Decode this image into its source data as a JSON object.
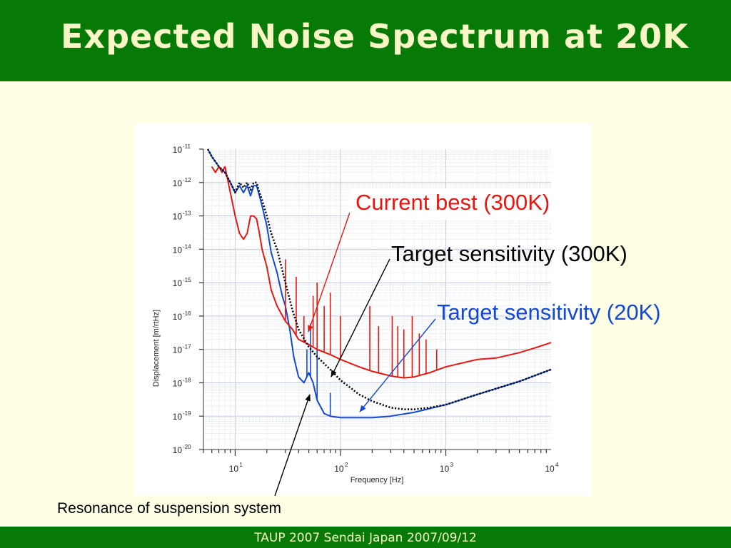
{
  "slide": {
    "title": "Expected Noise Spectrum at 20K",
    "footer": "TAUP 2007 Sendai Japan 2007/09/12",
    "annotations": {
      "current_best": "Current best (300K)",
      "target_300k": "Target sensitivity (300K)",
      "target_20k": "Target sensitivity (20K)",
      "resonance": "Resonance of suspension system"
    }
  },
  "colors": {
    "header": "#067906",
    "title_text": "#f8f6c6",
    "background": "#fefee4",
    "current_best": "#e8160e",
    "target_300k": "#000000",
    "target_20k": "#1248d8"
  },
  "chart_data": {
    "type": "line",
    "xlabel": "Frequency [Hz]",
    "ylabel": "Displacement [m/rtHz]",
    "xscale": "log",
    "yscale": "log",
    "xlim": [
      5,
      10000
    ],
    "ylim": [
      1e-20,
      1e-11
    ],
    "grid": true,
    "x_ticks": [
      {
        "base": "10",
        "exp": "1",
        "value": 10
      },
      {
        "base": "10",
        "exp": "2",
        "value": 100
      },
      {
        "base": "10",
        "exp": "3",
        "value": 1000
      },
      {
        "base": "10",
        "exp": "4",
        "value": 10000
      }
    ],
    "y_ticks": [
      {
        "base": "10",
        "exp": "-11",
        "value": 1e-11
      },
      {
        "base": "10",
        "exp": "-12",
        "value": 1e-12
      },
      {
        "base": "10",
        "exp": "-13",
        "value": 1e-13
      },
      {
        "base": "10",
        "exp": "-14",
        "value": 1e-14
      },
      {
        "base": "10",
        "exp": "-15",
        "value": 1e-15
      },
      {
        "base": "10",
        "exp": "-16",
        "value": 1e-16
      },
      {
        "base": "10",
        "exp": "-17",
        "value": 1e-17
      },
      {
        "base": "10",
        "exp": "-18",
        "value": 1e-18
      },
      {
        "base": "10",
        "exp": "-19",
        "value": 1e-19
      },
      {
        "base": "10",
        "exp": "-20",
        "value": 1e-20
      }
    ],
    "series": [
      {
        "name": "Current best (300K)",
        "color": "#e8160e",
        "style": "solid",
        "points": [
          [
            6,
            3e-12
          ],
          [
            6.5,
            2e-12
          ],
          [
            7,
            3e-12
          ],
          [
            7.5,
            2e-12
          ],
          [
            8,
            3e-12
          ],
          [
            9,
            5e-13
          ],
          [
            10,
            1e-13
          ],
          [
            11,
            3e-14
          ],
          [
            12,
            2e-14
          ],
          [
            13,
            3e-14
          ],
          [
            14,
            1e-13
          ],
          [
            15,
            1e-13
          ],
          [
            16,
            8e-14
          ],
          [
            17,
            3e-14
          ],
          [
            18,
            1e-14
          ],
          [
            20,
            3e-15
          ],
          [
            22,
            6e-16
          ],
          [
            25,
            2e-16
          ],
          [
            30,
            7e-17
          ],
          [
            35,
            4e-17
          ],
          [
            40,
            2e-17
          ],
          [
            50,
            1.4e-17
          ],
          [
            60,
            1e-17
          ],
          [
            80,
            7e-18
          ],
          [
            100,
            5e-18
          ],
          [
            150,
            3e-18
          ],
          [
            200,
            2.2e-18
          ],
          [
            300,
            1.6e-18
          ],
          [
            400,
            1.4e-18
          ],
          [
            500,
            1.5e-18
          ],
          [
            700,
            2e-18
          ],
          [
            1000,
            3e-18
          ],
          [
            2000,
            5e-18
          ],
          [
            3000,
            5.5e-18
          ],
          [
            5000,
            8e-18
          ],
          [
            7000,
            1.1e-17
          ],
          [
            10000,
            1.6e-17
          ]
        ],
        "peaks": [
          [
            30,
            5e-15
          ],
          [
            38,
            1.5e-15
          ],
          [
            45,
            1e-16
          ],
          [
            55,
            4e-16
          ],
          [
            60,
            1e-15
          ],
          [
            70,
            2e-16
          ],
          [
            80,
            5e-16
          ],
          [
            100,
            1e-16
          ],
          [
            190,
            2e-16
          ],
          [
            230,
            5e-17
          ],
          [
            310,
            1e-16
          ],
          [
            350,
            5e-17
          ],
          [
            400,
            4e-17
          ],
          [
            480,
            1e-16
          ],
          [
            560,
            3e-17
          ],
          [
            650,
            2e-17
          ],
          [
            820,
            1e-17
          ]
        ]
      },
      {
        "name": "Target sensitivity (300K)",
        "color": "#000000",
        "style": "dotted",
        "points": [
          [
            5.5,
            1e-11
          ],
          [
            6,
            6e-12
          ],
          [
            7,
            3e-12
          ],
          [
            8,
            2e-12
          ],
          [
            9,
            1e-12
          ],
          [
            10,
            5e-13
          ],
          [
            11,
            1e-12
          ],
          [
            12,
            7e-13
          ],
          [
            13,
            1e-12
          ],
          [
            14,
            6e-13
          ],
          [
            15,
            1e-12
          ],
          [
            16,
            1e-12
          ],
          [
            17,
            5e-13
          ],
          [
            18,
            3e-13
          ],
          [
            20,
            1e-13
          ],
          [
            22,
            3e-14
          ],
          [
            25,
            1e-14
          ],
          [
            30,
            1e-15
          ],
          [
            35,
            1.5e-16
          ],
          [
            40,
            4e-17
          ],
          [
            50,
            1.2e-17
          ],
          [
            60,
            6e-18
          ],
          [
            80,
            2.5e-18
          ],
          [
            100,
            1.2e-18
          ],
          [
            150,
            4.5e-19
          ],
          [
            200,
            2.8e-19
          ],
          [
            300,
            1.8e-19
          ],
          [
            400,
            1.6e-19
          ],
          [
            500,
            1.6e-19
          ],
          [
            700,
            1.8e-19
          ],
          [
            1000,
            2.2e-19
          ],
          [
            2000,
            4.5e-19
          ],
          [
            5000,
            1.1e-18
          ],
          [
            10000,
            2.5e-18
          ]
        ]
      },
      {
        "name": "Target sensitivity (20K)",
        "color": "#1248d8",
        "style": "solid",
        "points": [
          [
            5.5,
            1e-11
          ],
          [
            6,
            6e-12
          ],
          [
            7,
            3e-12
          ],
          [
            8,
            2e-12
          ],
          [
            9,
            1e-12
          ],
          [
            10,
            5e-13
          ],
          [
            11,
            8e-13
          ],
          [
            12,
            5e-13
          ],
          [
            13,
            8e-13
          ],
          [
            14,
            4e-13
          ],
          [
            15,
            8e-13
          ],
          [
            16,
            8e-13
          ],
          [
            17,
            4e-13
          ],
          [
            18,
            2e-13
          ],
          [
            20,
            5e-14
          ],
          [
            22,
            8e-15
          ],
          [
            25,
            2e-15
          ],
          [
            28,
            4e-16
          ],
          [
            30,
            2e-16
          ],
          [
            33,
            4e-17
          ],
          [
            36,
            6e-18
          ],
          [
            40,
            1.5e-18
          ],
          [
            45,
            1e-18
          ],
          [
            50,
            2e-18
          ],
          [
            55,
            1e-18
          ],
          [
            60,
            3e-19
          ],
          [
            70,
            1.2e-19
          ],
          [
            80,
            1e-19
          ],
          [
            100,
            9e-20
          ],
          [
            200,
            9e-20
          ],
          [
            300,
            1e-19
          ],
          [
            500,
            1.3e-19
          ],
          [
            1000,
            2.2e-19
          ],
          [
            2000,
            4.5e-19
          ],
          [
            5000,
            1.1e-18
          ],
          [
            10000,
            2.5e-18
          ]
        ],
        "peaks": [
          [
            48,
            1e-17
          ],
          [
            52,
            6e-17
          ],
          [
            60,
            1e-17
          ],
          [
            80,
            5e-19
          ]
        ]
      }
    ]
  }
}
